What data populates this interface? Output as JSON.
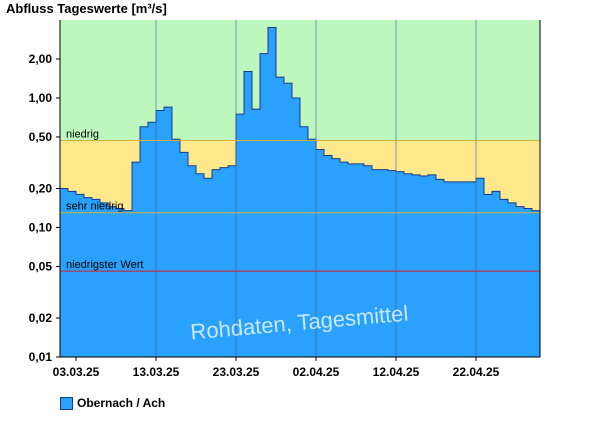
{
  "chart_data": {
    "type": "area",
    "title": "Abfluss Tageswerte [m³/s]",
    "watermark": "Rohdaten, Tagesmittel",
    "y_scale": "log",
    "ylim": [
      0.01,
      4
    ],
    "y_ticks": [
      "0,01",
      "0,02",
      "0,05",
      "0,10",
      "0,20",
      "0,50",
      "1,00",
      "2,00"
    ],
    "x_ticks": [
      "03.03.25",
      "13.03.25",
      "23.03.25",
      "02.04.25",
      "12.04.25",
      "22.04.25"
    ],
    "zones": [
      {
        "label": "niedrig",
        "value": 0.47,
        "line_color": "#d4b23a",
        "fill_above": "#bdf7bd"
      },
      {
        "label": "sehr niedrig",
        "value": 0.13,
        "line_color": "#d4b23a",
        "fill_above": "#fde88c"
      },
      {
        "label": "niedrigster Wert",
        "value": 0.046,
        "line_color": "#d42020",
        "fill_above": "#fbd49a"
      }
    ],
    "series": [
      {
        "name": "Obernach / Ach",
        "color": "#2aa1fc",
        "x_start": "2025-03-01",
        "values": [
          0.2,
          0.19,
          0.18,
          0.17,
          0.165,
          0.155,
          0.145,
          0.14,
          0.135,
          0.32,
          0.6,
          0.65,
          0.8,
          0.85,
          0.48,
          0.38,
          0.3,
          0.26,
          0.24,
          0.28,
          0.29,
          0.3,
          0.75,
          1.6,
          0.82,
          2.2,
          3.5,
          1.45,
          1.3,
          1.0,
          0.6,
          0.48,
          0.4,
          0.36,
          0.34,
          0.32,
          0.31,
          0.31,
          0.3,
          0.28,
          0.28,
          0.275,
          0.27,
          0.26,
          0.255,
          0.25,
          0.255,
          0.235,
          0.225,
          0.225,
          0.225,
          0.225,
          0.24,
          0.18,
          0.19,
          0.165,
          0.155,
          0.145,
          0.14
        ],
        "last_value": 0.135
      }
    ],
    "legend": {
      "label": "Obernach / Ach",
      "position": "bottom-left"
    }
  }
}
